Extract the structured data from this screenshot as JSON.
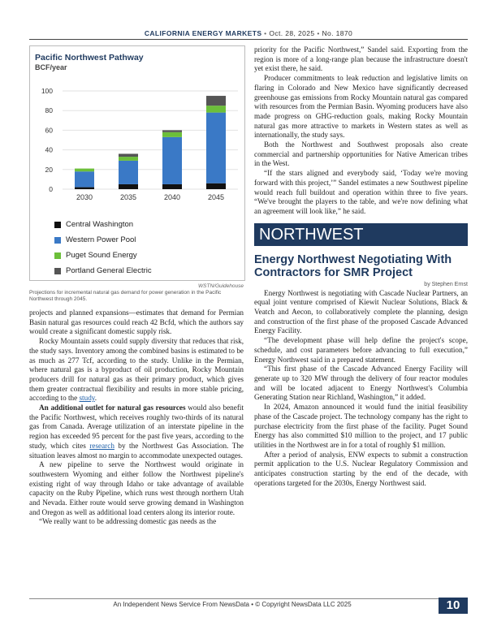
{
  "header": {
    "publication": "CALIFORNIA ENERGY MARKETS",
    "date": "Oct. 28, 2025",
    "issue": "No. 1870",
    "separator": "•"
  },
  "chart": {
    "title": "Pacific Northwest Pathway",
    "unit": "BCF/year",
    "credit": "WSTN/Guidehouse",
    "caption": "Projections for incremental natural gas demand for power generation in the Pacific Northwest through 2045."
  },
  "chart_data": {
    "type": "bar",
    "stacked": true,
    "categories": [
      "2030",
      "2035",
      "2040",
      "2045"
    ],
    "series": [
      {
        "name": "Central Washington",
        "color": "#111111",
        "values": [
          2,
          5,
          5,
          6
        ]
      },
      {
        "name": "Western Power Pool",
        "color": "#3a79c6",
        "values": [
          16,
          24,
          48,
          72
        ]
      },
      {
        "name": "Puget Sound Energy",
        "color": "#6cbf3a",
        "values": [
          3,
          4,
          5,
          7
        ]
      },
      {
        "name": "Portland General Electric",
        "color": "#555555",
        "values": [
          0,
          3,
          2,
          10
        ]
      }
    ],
    "ylim": [
      0,
      100
    ],
    "yticks": [
      0,
      20,
      40,
      60,
      80,
      100
    ],
    "grid": true,
    "legend_position": "bottom"
  },
  "left_text": [
    "projects and planned expansions—estimates that demand for Permian Basin natural gas resources could reach 42 Bcfd, which the authors say would create a significant domestic supply risk.",
    "Rocky Mountain assets could supply diversity that reduces that risk, the study says. Inventory among the combined basins is estimated to be as much as 277 Tcf, according to the study. Unlike in the Permian, where natural gas is a byproduct of oil production, Rocky Mountain producers drill for natural gas as their primary product, which gives them greater contractual flexibility and results in more stable pricing, according to the",
    "benefit the Pacific Northwest, which receives roughly two-thirds of its natural gas from Canada. Average utilization of an interstate pipeline in the region has exceeded 95 percent for the past five years, according to the study, which cites",
    "by the Northwest Gas Association. The situation leaves almost no margin to accommodate unexpected outages.",
    "A new pipeline to serve the Northwest would originate in southwestern Wyoming and either follow the Northwest pipeline's existing right of way through Idaho or take advantage of available capacity on the Ruby Pipeline, which runs west through northern Utah and Nevada. Either route would serve growing demand in Washington and Oregon as well as additional load centers along its interior route.",
    "“We really want to be addressing domestic gas needs as the"
  ],
  "links": {
    "study": "study",
    "research": "research"
  },
  "subhead_left": "An additional outlet for natural gas resources",
  "subhead_tail": "would also",
  "right_text": [
    "priority for the Pacific Northwest,” Sandel said. Exporting from the region is more of a long-range plan because the infrastructure doesn't yet exist there, he said.",
    "Producer commitments to leak reduction and legislative limits on flaring in Colorado and New Mexico have significantly decreased greenhouse gas emissions from Rocky Mountain natural gas compared with resources from the Permian Basin. Wyoming producers have also made progress on GHG-reduction goals, making Rocky Mountain natural gas more attractive to markets in Western states as well as internationally, the study says.",
    "Both the Northwest and Southwest proposals also create commercial and partnership opportunities for Native American tribes in the West.",
    "“If the stars aligned and everybody said, ‘Today we're moving forward with this project,’” Sandel estimates a new Southwest pipeline would reach full buildout and operation within three to five years. “We've brought the players to the table, and we're now defining what an agreement will look like,” he said."
  ],
  "section": "NORTHWEST",
  "article": {
    "headline": "Energy Northwest Negotiating With Contractors for SMR Project",
    "byline": "by Stephen Ernst",
    "paragraphs": [
      "Energy Northwest is negotiating with Cascade Nuclear Partners, an equal joint venture comprised of Kiewit Nuclear Solutions, Black & Veatch and Aecon, to collaboratively complete the planning, design and construction of the first phase of the proposed Cascade Advanced Energy Facility.",
      "“The development phase will help define the project's scope, schedule, and cost parameters before advancing to full execution,” Energy Northwest said in a prepared statement.",
      "“This first phase of the Cascade Advanced Energy Facility will generate up to 320 MW through the delivery of four reactor modules and will be located adjacent to Energy Northwest's Columbia Generating Station near Richland, Washington,” it added.",
      "In 2024, Amazon announced it would fund the initial feasibility phase of the Cascade project. The technology company has the right to purchase electricity from the first phase of the facility. Puget Sound Energy has also committed $10 million to the project, and 17 public utilities in the Northwest are in for a total of roughly $1 million.",
      "After a period of analysis, ENW expects to submit a construction permit application to the U.S. Nuclear Regulatory Commission and anticipates construction starting by the end of the decade, with operations targeted for the 2030s, Energy Northwest said."
    ]
  },
  "footer": {
    "text": "An Independent News Service From NewsData • © Copyright NewsData LLC 2025",
    "page": "10"
  }
}
